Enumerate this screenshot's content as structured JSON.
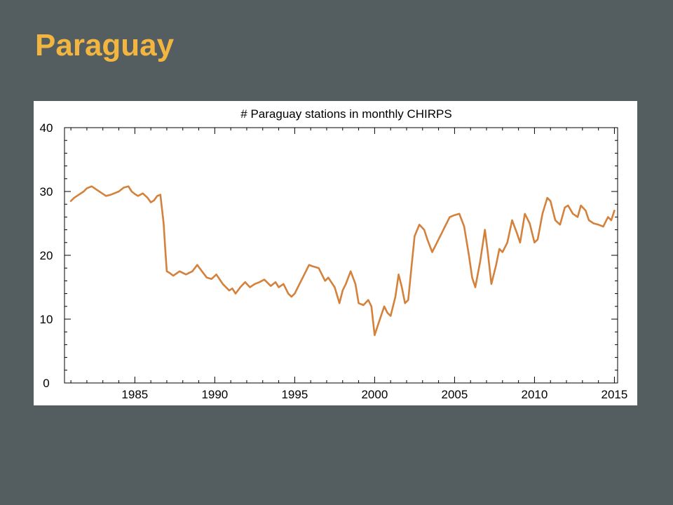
{
  "slide": {
    "title": "Paraguay"
  },
  "colors": {
    "background": "#545e60",
    "title": "#f2b640",
    "line": "#d4813c",
    "panel": "#ffffff"
  },
  "chart_data": {
    "type": "line",
    "title": "# Paraguay stations in monthly CHIRPS",
    "xlabel": "",
    "ylabel": "",
    "xlim": [
      1980.6,
      2015.2
    ],
    "ylim": [
      0,
      40
    ],
    "x_ticks": [
      1985,
      1990,
      1995,
      2000,
      2005,
      2010,
      2015
    ],
    "y_ticks": [
      0,
      10,
      20,
      30,
      40
    ],
    "grid": false,
    "series": [
      {
        "x": [
          1981.0,
          1981.2,
          1981.5,
          1981.8,
          1982.0,
          1982.3,
          1982.6,
          1982.9,
          1983.2,
          1983.5,
          1983.8,
          1984.0,
          1984.3,
          1984.6,
          1984.8,
          1985.0,
          1985.2,
          1985.5,
          1985.8,
          1986.0,
          1986.2,
          1986.4,
          1986.6,
          1986.8,
          1986.9,
          1987.0,
          1987.2,
          1987.4,
          1987.8,
          1988.2,
          1988.6,
          1988.9,
          1989.2,
          1989.5,
          1989.8,
          1990.1,
          1990.5,
          1990.9,
          1991.1,
          1991.3,
          1991.6,
          1991.9,
          1992.2,
          1992.5,
          1992.8,
          1993.1,
          1993.5,
          1993.8,
          1994.0,
          1994.3,
          1994.6,
          1994.8,
          1995.0,
          1995.3,
          1995.6,
          1995.9,
          1996.1,
          1996.5,
          1996.9,
          1997.1,
          1997.5,
          1997.8,
          1998.0,
          1998.2,
          1998.5,
          1998.8,
          1999.0,
          1999.3,
          1999.6,
          1999.8,
          2000.0,
          2000.2,
          2000.4,
          2000.6,
          2000.8,
          2001.0,
          2001.3,
          2001.5,
          2001.7,
          2001.9,
          2002.1,
          2002.3,
          2002.5,
          2002.8,
          2003.1,
          2003.3,
          2003.6,
          2003.9,
          2004.2,
          2004.4,
          2004.7,
          2005.0,
          2005.3,
          2005.6,
          2005.9,
          2006.1,
          2006.3,
          2006.6,
          2006.9,
          2007.1,
          2007.3,
          2007.6,
          2007.8,
          2008.0,
          2008.3,
          2008.6,
          2008.9,
          2009.1,
          2009.4,
          2009.7,
          2010.0,
          2010.2,
          2010.5,
          2010.8,
          2011.0,
          2011.3,
          2011.6,
          2011.9,
          2012.1,
          2012.4,
          2012.7,
          2012.9,
          2013.2,
          2013.4,
          2013.7,
          2014.0,
          2014.3,
          2014.6,
          2014.8,
          2015.0
        ],
        "y": [
          28.5,
          29.0,
          29.5,
          30.0,
          30.5,
          30.8,
          30.3,
          29.8,
          29.3,
          29.5,
          29.8,
          30.0,
          30.6,
          30.8,
          30.0,
          29.6,
          29.3,
          29.7,
          29.0,
          28.3,
          28.6,
          29.3,
          29.5,
          25.0,
          21.0,
          17.5,
          17.2,
          16.8,
          17.5,
          17.0,
          17.5,
          18.5,
          17.5,
          16.5,
          16.3,
          17.0,
          15.5,
          14.5,
          14.8,
          14.0,
          15.0,
          15.8,
          15.0,
          15.5,
          15.8,
          16.2,
          15.2,
          15.8,
          15.0,
          15.5,
          14.0,
          13.5,
          14.0,
          15.5,
          17.0,
          18.5,
          18.3,
          18.0,
          16.0,
          16.5,
          15.0,
          12.5,
          14.5,
          15.5,
          17.5,
          15.5,
          12.5,
          12.2,
          13.0,
          12.0,
          7.5,
          9.0,
          10.5,
          12.0,
          11.0,
          10.5,
          13.5,
          17.0,
          15.0,
          12.5,
          13.0,
          18.0,
          23.0,
          24.8,
          24.0,
          22.5,
          20.5,
          22.0,
          23.5,
          24.5,
          26.0,
          26.3,
          26.5,
          24.5,
          20.0,
          16.5,
          15.0,
          19.0,
          24.0,
          20.0,
          15.5,
          18.5,
          21.0,
          20.5,
          22.0,
          25.5,
          23.5,
          22.0,
          26.5,
          25.0,
          22.0,
          22.5,
          26.5,
          29.0,
          28.5,
          25.5,
          24.8,
          27.5,
          27.8,
          26.5,
          26.0,
          27.8,
          27.0,
          25.5,
          25.0,
          24.8,
          24.5,
          26.0,
          25.5,
          27.0
        ]
      }
    ]
  }
}
